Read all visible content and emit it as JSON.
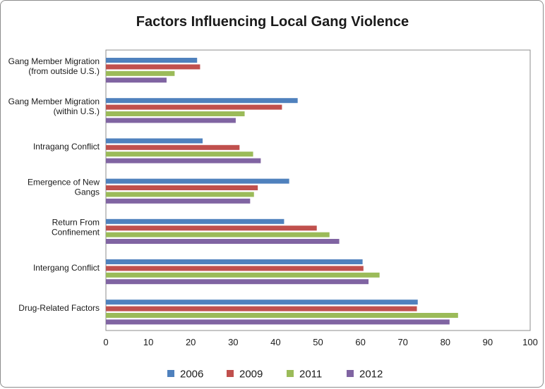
{
  "chart_data": {
    "type": "bar",
    "orientation": "horizontal",
    "title": "Factors Influencing Local Gang Violence",
    "xlabel": "",
    "ylabel": "",
    "xlim": [
      0,
      100
    ],
    "xticks": [
      0,
      10,
      20,
      30,
      40,
      50,
      60,
      70,
      80,
      90,
      100
    ],
    "grid": false,
    "legend_position": "bottom",
    "categories": [
      [
        "Gang Member Migration",
        "(from outside U.S.)"
      ],
      [
        "Gang Member Migration",
        "(within U.S.)"
      ],
      [
        "Intragang Conflict"
      ],
      [
        "Emergence of New",
        "Gangs"
      ],
      [
        "Return From",
        "Confinement"
      ],
      [
        "Intergang Conflict"
      ],
      [
        "Drug-Related Factors"
      ]
    ],
    "series": [
      {
        "name": "2006",
        "color": "#4f81bd",
        "values": [
          21.5,
          45.2,
          22.8,
          43.2,
          42.0,
          60.5,
          73.5
        ]
      },
      {
        "name": "2009",
        "color": "#c0504d",
        "values": [
          22.2,
          41.5,
          31.5,
          35.8,
          49.7,
          60.7,
          73.3
        ]
      },
      {
        "name": "2011",
        "color": "#9bbb59",
        "values": [
          16.2,
          32.7,
          34.7,
          34.9,
          52.7,
          64.5,
          83.0
        ]
      },
      {
        "name": "2012",
        "color": "#8064a2",
        "values": [
          14.3,
          30.6,
          36.5,
          34.0,
          55.0,
          61.9,
          81.0
        ]
      }
    ]
  }
}
